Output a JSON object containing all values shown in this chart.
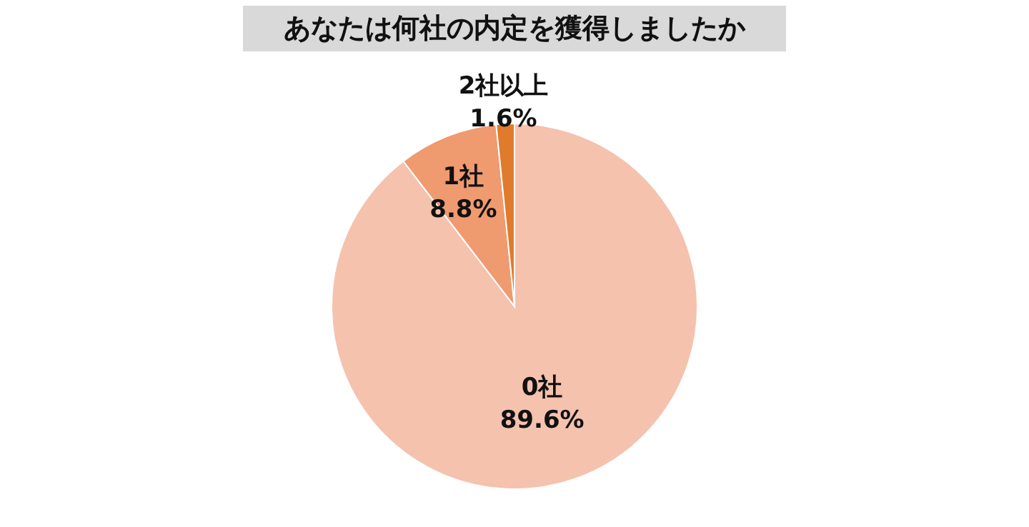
{
  "chart_data": {
    "type": "pie",
    "title": "あなたは何社の内定を獲得しましたか",
    "categories": [
      "0社",
      "1社",
      "2社以上"
    ],
    "values": [
      89.6,
      8.8,
      1.6
    ],
    "value_labels": [
      "89.6%",
      "8.8%",
      "1.6%"
    ],
    "colors": [
      "#f5c2ae",
      "#f09a70",
      "#e07b2c"
    ]
  }
}
